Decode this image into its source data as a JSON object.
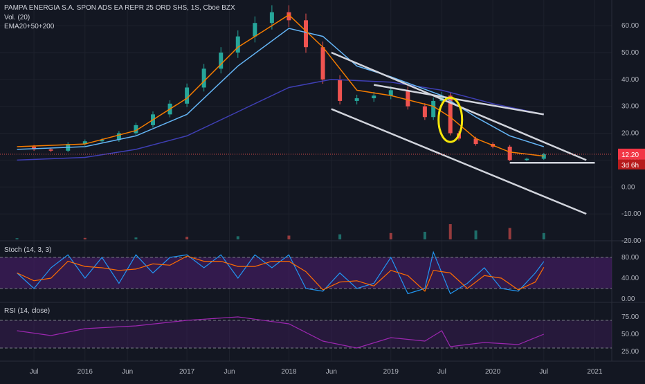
{
  "header": {
    "title": "PAMPA ENERGIA S.A. SPON ADS EA REPR 25 ORD SHS, 1S, Cboe BZX",
    "volume_label": "Vol. (20)",
    "ema_label": "EMA20+50+200",
    "stoch_label": "Stoch (14, 3, 3)",
    "rsi_label": "RSI (14, close)"
  },
  "price_badge": {
    "value": "12.20",
    "countdown": "3d 6h",
    "color": "#f23645"
  },
  "colors": {
    "background": "#131722",
    "up": "#26a69a",
    "down": "#ef5350",
    "ema20": "#f57c00",
    "ema50": "#64b5f6",
    "ema200": "#3f3fb5",
    "stoch_k": "#2196f3",
    "stoch_d": "#ff6d00",
    "rsi": "#9c27b0",
    "band": "#4a1d6b",
    "trendline": "#d1d4dc",
    "annotation": "#f5e50a"
  },
  "chart_data": [
    {
      "type": "candlestick",
      "panel": "price",
      "x_ticks": [
        "Jul",
        "2016",
        "Jun",
        "2017",
        "Jun",
        "2018",
        "Jun",
        "2019",
        "Jul",
        "2020",
        "Jul",
        "2021"
      ],
      "y_ticks": [
        "60.00",
        "50.00",
        "40.00",
        "30.00",
        "20.00",
        "10.00",
        "0.00",
        "-10.00",
        "-20.00"
      ],
      "ylim": [
        -20,
        68
      ],
      "last_price": 12.2,
      "series_close": [
        [
          "2015-05",
          15
        ],
        [
          "2015-07",
          14
        ],
        [
          "2015-09",
          13.5
        ],
        [
          "2015-11",
          16
        ],
        [
          "2016-01",
          17
        ],
        [
          "2016-03",
          17.5
        ],
        [
          "2016-05",
          20
        ],
        [
          "2016-07",
          23
        ],
        [
          "2016-09",
          27
        ],
        [
          "2016-11",
          31
        ],
        [
          "2017-01",
          37
        ],
        [
          "2017-03",
          44
        ],
        [
          "2017-05",
          50
        ],
        [
          "2017-07",
          56
        ],
        [
          "2017-09",
          61
        ],
        [
          "2017-11",
          65
        ],
        [
          "2018-01",
          62
        ],
        [
          "2018-03",
          52
        ],
        [
          "2018-05",
          40
        ],
        [
          "2018-07",
          32
        ],
        [
          "2018-09",
          33
        ],
        [
          "2018-11",
          34
        ],
        [
          "2019-01",
          36
        ],
        [
          "2019-03",
          30
        ],
        [
          "2019-05",
          26
        ],
        [
          "2019-06",
          32
        ],
        [
          "2019-07",
          34
        ],
        [
          "2019-08",
          20
        ],
        [
          "2019-09",
          18
        ],
        [
          "2019-11",
          16
        ],
        [
          "2020-01",
          15
        ],
        [
          "2020-03",
          10
        ],
        [
          "2020-05",
          10.5
        ],
        [
          "2020-07",
          12.2
        ]
      ],
      "ema20_close": [
        [
          "2015-05",
          15
        ],
        [
          "2016-01",
          16
        ],
        [
          "2016-07",
          21
        ],
        [
          "2017-01",
          33
        ],
        [
          "2017-07",
          52
        ],
        [
          "2018-01",
          64
        ],
        [
          "2018-05",
          52
        ],
        [
          "2018-09",
          36
        ],
        [
          "2019-01",
          34
        ],
        [
          "2019-06",
          30
        ],
        [
          "2019-08",
          26
        ],
        [
          "2019-11",
          18
        ],
        [
          "2020-03",
          13
        ],
        [
          "2020-07",
          11.5
        ]
      ],
      "ema50_close": [
        [
          "2015-05",
          14
        ],
        [
          "2016-01",
          15
        ],
        [
          "2016-07",
          19
        ],
        [
          "2017-01",
          27
        ],
        [
          "2017-07",
          45
        ],
        [
          "2018-01",
          59
        ],
        [
          "2018-05",
          56
        ],
        [
          "2018-09",
          45
        ],
        [
          "2019-01",
          41
        ],
        [
          "2019-07",
          34
        ],
        [
          "2019-11",
          26
        ],
        [
          "2020-03",
          19
        ],
        [
          "2020-07",
          15
        ]
      ],
      "ema200_close": [
        [
          "2015-05",
          10
        ],
        [
          "2016-01",
          11
        ],
        [
          "2016-07",
          14
        ],
        [
          "2017-01",
          19
        ],
        [
          "2017-07",
          28
        ],
        [
          "2018-01",
          37
        ],
        [
          "2018-06",
          40
        ],
        [
          "2019-01",
          39
        ],
        [
          "2019-07",
          36
        ],
        [
          "2020-01",
          31
        ],
        [
          "2020-07",
          27
        ]
      ],
      "volume": [
        [
          "2015-05",
          1
        ],
        [
          "2016-01",
          1.2
        ],
        [
          "2016-07",
          1.5
        ],
        [
          "2017-01",
          2
        ],
        [
          "2017-07",
          2.5
        ],
        [
          "2018-01",
          3
        ],
        [
          "2018-07",
          4
        ],
        [
          "2019-01",
          5
        ],
        [
          "2019-05",
          6
        ],
        [
          "2019-08",
          12
        ],
        [
          "2019-11",
          7
        ],
        [
          "2020-03",
          9
        ],
        [
          "2020-07",
          5
        ]
      ],
      "trendlines": [
        {
          "from": [
            "2018-06",
            50
          ],
          "to": [
            "2020-12",
            10
          ]
        },
        {
          "from": [
            "2018-06",
            29
          ],
          "to": [
            "2020-12",
            -10
          ]
        },
        {
          "from": [
            "2018-11",
            38
          ],
          "to": [
            "2020-07",
            27
          ]
        },
        {
          "from": [
            "2020-03",
            9
          ],
          "to": [
            "2021-01",
            9
          ]
        }
      ]
    },
    {
      "type": "line",
      "panel": "stochastic",
      "y_ticks": [
        "80.00",
        "40.00",
        "0.00"
      ],
      "ylim": [
        0,
        100
      ],
      "band": [
        20,
        80
      ],
      "series": [
        {
          "values": [
            [
              "2015-05",
              50
            ],
            [
              "2015-07",
              20
            ],
            [
              "2015-09",
              60
            ],
            [
              "2015-11",
              85
            ],
            [
              "2016-01",
              40
            ],
            [
              "2016-03",
              80
            ],
            [
              "2016-05",
              30
            ],
            [
              "2016-07",
              85
            ],
            [
              "2016-09",
              50
            ],
            [
              "2016-11",
              80
            ],
            [
              "2017-01",
              85
            ],
            [
              "2017-03",
              60
            ],
            [
              "2017-05",
              85
            ],
            [
              "2017-07",
              40
            ],
            [
              "2017-09",
              85
            ],
            [
              "2017-11",
              60
            ],
            [
              "2018-01",
              85
            ],
            [
              "2018-03",
              20
            ],
            [
              "2018-05",
              15
            ],
            [
              "2018-07",
              50
            ],
            [
              "2018-09",
              20
            ],
            [
              "2018-11",
              30
            ],
            [
              "2019-01",
              80
            ],
            [
              "2019-03",
              10
            ],
            [
              "2019-05",
              20
            ],
            [
              "2019-06",
              90
            ],
            [
              "2019-08",
              10
            ],
            [
              "2019-10",
              30
            ],
            [
              "2019-12",
              60
            ],
            [
              "2020-02",
              20
            ],
            [
              "2020-04",
              15
            ],
            [
              "2020-06",
              50
            ],
            [
              "2020-07",
              72
            ]
          ]
        }
      ]
    },
    {
      "type": "line",
      "panel": "rsi",
      "y_ticks": [
        "75.00",
        "50.00",
        "25.00"
      ],
      "ylim": [
        15,
        85
      ],
      "band": [
        30,
        70
      ],
      "series": [
        {
          "values": [
            [
              "2015-05",
              55
            ],
            [
              "2015-09",
              48
            ],
            [
              "2016-01",
              58
            ],
            [
              "2016-07",
              62
            ],
            [
              "2017-01",
              70
            ],
            [
              "2017-07",
              75
            ],
            [
              "2018-01",
              65
            ],
            [
              "2018-05",
              40
            ],
            [
              "2018-09",
              30
            ],
            [
              "2019-01",
              45
            ],
            [
              "2019-05",
              40
            ],
            [
              "2019-07",
              55
            ],
            [
              "2019-08",
              32
            ],
            [
              "2019-12",
              38
            ],
            [
              "2020-04",
              35
            ],
            [
              "2020-07",
              50
            ]
          ]
        }
      ]
    }
  ]
}
